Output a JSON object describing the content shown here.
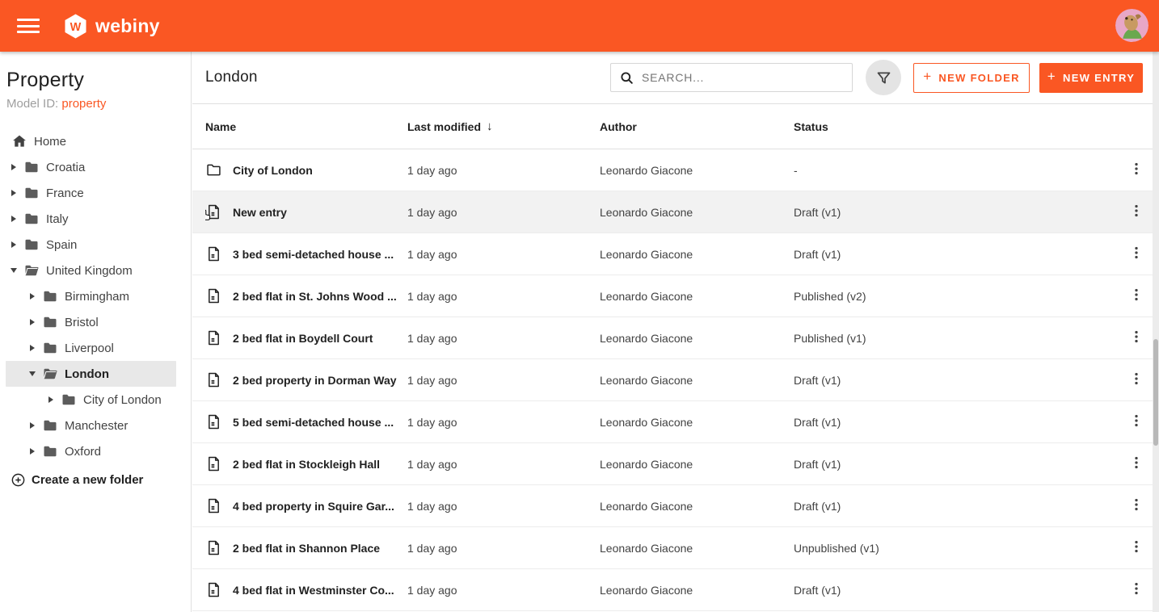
{
  "header": {
    "brand": "webiny",
    "logo_letter": "W"
  },
  "sidebar": {
    "title": "Property",
    "model_id_label": "Model ID:",
    "model_id_value": "property",
    "home_label": "Home",
    "create_folder_label": "Create a new folder",
    "tree": [
      {
        "label": "Croatia",
        "level": 1,
        "expanded": false,
        "selected": false
      },
      {
        "label": "France",
        "level": 1,
        "expanded": false,
        "selected": false
      },
      {
        "label": "Italy",
        "level": 1,
        "expanded": false,
        "selected": false
      },
      {
        "label": "Spain",
        "level": 1,
        "expanded": false,
        "selected": false
      },
      {
        "label": "United Kingdom",
        "level": 1,
        "expanded": true,
        "selected": false
      },
      {
        "label": "Birmingham",
        "level": 2,
        "expanded": false,
        "selected": false
      },
      {
        "label": "Bristol",
        "level": 2,
        "expanded": false,
        "selected": false
      },
      {
        "label": "Liverpool",
        "level": 2,
        "expanded": false,
        "selected": false
      },
      {
        "label": "London",
        "level": 2,
        "expanded": true,
        "selected": true
      },
      {
        "label": "City of London",
        "level": 3,
        "expanded": false,
        "selected": false
      },
      {
        "label": "Manchester",
        "level": 2,
        "expanded": false,
        "selected": false
      },
      {
        "label": "Oxford",
        "level": 2,
        "expanded": false,
        "selected": false
      }
    ]
  },
  "toolbar": {
    "title": "London",
    "search_placeholder": "SEARCH...",
    "plus": "+",
    "new_folder_label": "NEW FOLDER",
    "new_entry_label": "NEW ENTRY"
  },
  "table": {
    "columns": [
      "Name",
      "Last modified",
      "Author",
      "Status"
    ],
    "sort_column": "Last modified",
    "sort_direction": "descending",
    "sort_indicator": "↓",
    "rows": [
      {
        "type": "folder",
        "name": "City of London",
        "modified": "1 day ago",
        "author": "Leonardo Giacone",
        "status": "-",
        "highlighted": false,
        "cursor": false
      },
      {
        "type": "entry",
        "name": "New entry",
        "modified": "1 day ago",
        "author": "Leonardo Giacone",
        "status": "Draft (v1)",
        "highlighted": true,
        "cursor": true
      },
      {
        "type": "entry",
        "name": "3 bed semi-detached house ...",
        "modified": "1 day ago",
        "author": "Leonardo Giacone",
        "status": "Draft (v1)",
        "highlighted": false,
        "cursor": false
      },
      {
        "type": "entry",
        "name": "2 bed flat in St. Johns Wood ...",
        "modified": "1 day ago",
        "author": "Leonardo Giacone",
        "status": "Published (v2)",
        "highlighted": false,
        "cursor": false
      },
      {
        "type": "entry",
        "name": "2 bed flat in Boydell Court",
        "modified": "1 day ago",
        "author": "Leonardo Giacone",
        "status": "Published (v1)",
        "highlighted": false,
        "cursor": false
      },
      {
        "type": "entry",
        "name": "2 bed property in Dorman Way",
        "modified": "1 day ago",
        "author": "Leonardo Giacone",
        "status": "Draft (v1)",
        "highlighted": false,
        "cursor": false
      },
      {
        "type": "entry",
        "name": "5 bed semi-detached house ...",
        "modified": "1 day ago",
        "author": "Leonardo Giacone",
        "status": "Draft (v1)",
        "highlighted": false,
        "cursor": false
      },
      {
        "type": "entry",
        "name": "2 bed flat in Stockleigh Hall",
        "modified": "1 day ago",
        "author": "Leonardo Giacone",
        "status": "Draft (v1)",
        "highlighted": false,
        "cursor": false
      },
      {
        "type": "entry",
        "name": "4 bed property in Squire Gar...",
        "modified": "1 day ago",
        "author": "Leonardo Giacone",
        "status": "Draft (v1)",
        "highlighted": false,
        "cursor": false
      },
      {
        "type": "entry",
        "name": "2 bed flat in Shannon Place",
        "modified": "1 day ago",
        "author": "Leonardo Giacone",
        "status": "Unpublished (v1)",
        "highlighted": false,
        "cursor": false
      },
      {
        "type": "entry",
        "name": "4 bed flat in Westminster Co...",
        "modified": "1 day ago",
        "author": "Leonardo Giacone",
        "status": "Draft (v1)",
        "highlighted": false,
        "cursor": false
      }
    ]
  },
  "colors": {
    "brand_orange": "#fa5723",
    "border": "#e0e0e0",
    "text_primary": "#212121",
    "text_secondary": "#616161",
    "muted": "#9e9e9e",
    "sel_bg": "#e8e8e8",
    "hl_bg": "#f2f2f2",
    "circle_bg": "#e4e4e4"
  }
}
